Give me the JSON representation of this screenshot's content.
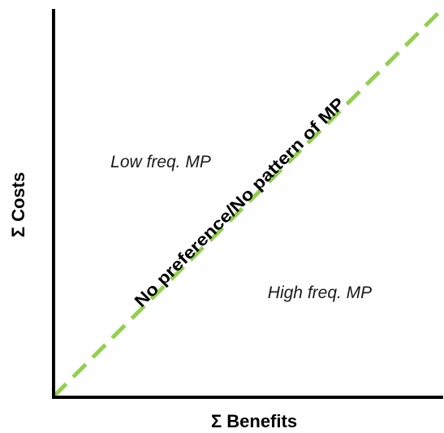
{
  "axes": {
    "x_label": "Σ Benefits",
    "y_label": "Σ Costs"
  },
  "regions": {
    "upper_left": "Low freq. MP",
    "lower_right": "High freq. MP"
  },
  "diagonal": {
    "label": "No preference/No pattern of MP",
    "color": "#92d050",
    "style": "dashed"
  }
}
